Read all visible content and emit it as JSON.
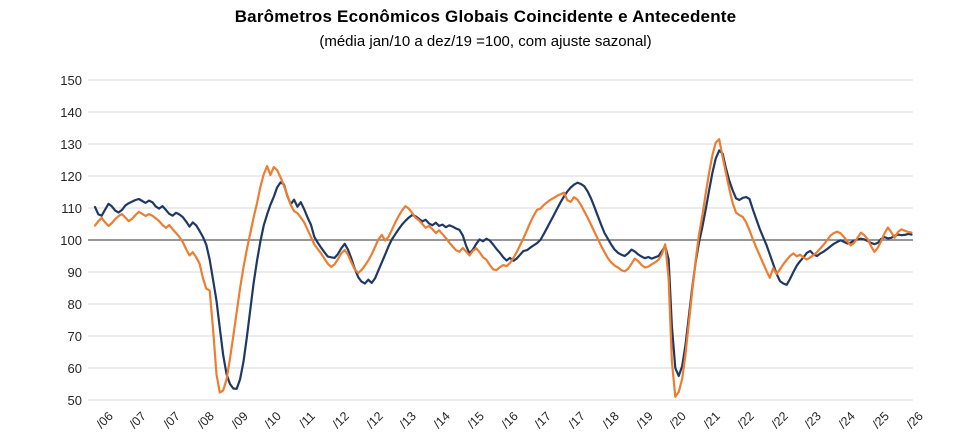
{
  "header": {
    "title": "Barômetros Econômicos Globais Coincidente e Antecedente",
    "subtitle": "(média jan/10 a dez/19 =100, com ajuste sazonal)"
  },
  "colors": {
    "coincidente_line": "#1f3864",
    "antecedente_line": "#ed7d31",
    "gridline": "#d9d9d9",
    "baseline_100": "#595959",
    "axis_text": "#262626"
  },
  "chart_data": {
    "type": "line",
    "title": "Barômetros Econômicos Globais Coincidente e Antecedente",
    "subtitle": "(média jan/10 a dez/19 =100, com ajuste sazonal)",
    "x_unit": "monthly, jan/06 through mar/26",
    "ylim": [
      50,
      150
    ],
    "yticks": [
      50,
      60,
      70,
      80,
      90,
      100,
      110,
      120,
      130,
      140,
      150
    ],
    "baseline": 100,
    "grid": "horizontal",
    "legend_position": "none",
    "x_tick_indices": [
      2,
      12,
      22,
      32,
      42,
      52,
      62,
      72,
      82,
      92,
      102,
      112,
      122,
      132,
      142,
      152,
      162,
      172,
      182,
      192,
      202,
      212,
      222,
      232,
      242
    ],
    "x_tick_labels": [
      "/06",
      "/07",
      "/07",
      "/08",
      "/09",
      "/10",
      "/11",
      "/12",
      "/12",
      "/13",
      "/14",
      "/15",
      "/16",
      "/17",
      "/17",
      "/18",
      "/19",
      "/20",
      "/21",
      "/22",
      "/22",
      "/23",
      "/24",
      "/25",
      "/26"
    ],
    "series": [
      {
        "name": "Coincidente",
        "color": "#1f3864",
        "values": [
          110.3,
          108.0,
          107.6,
          109.5,
          111.3,
          110.5,
          109.2,
          108.6,
          109.4,
          110.8,
          111.5,
          112.0,
          112.5,
          112.8,
          112.2,
          111.6,
          112.3,
          111.8,
          110.5,
          109.8,
          110.6,
          109.4,
          108.2,
          107.6,
          108.5,
          108.0,
          107.2,
          105.8,
          104.2,
          105.5,
          104.6,
          102.8,
          100.9,
          98.5,
          93.8,
          87.5,
          81.0,
          72.5,
          64.0,
          58.0,
          55.0,
          53.6,
          53.5,
          56.5,
          62.0,
          69.5,
          78.0,
          86.5,
          93.5,
          99.4,
          104.5,
          108.0,
          111.0,
          113.5,
          116.5,
          118.0,
          117.4,
          113.8,
          111.2,
          112.6,
          110.4,
          111.8,
          109.6,
          107.0,
          104.8,
          101.0,
          99.2,
          97.6,
          96.2,
          94.8,
          94.6,
          94.4,
          95.6,
          97.4,
          98.8,
          97.0,
          94.2,
          91.0,
          88.4,
          87.0,
          86.4,
          87.6,
          86.6,
          88.0,
          90.5,
          93.0,
          95.5,
          98.0,
          100.2,
          101.8,
          103.4,
          104.8,
          106.0,
          107.0,
          107.8,
          107.4,
          106.6,
          105.8,
          106.3,
          105.2,
          104.6,
          105.4,
          104.4,
          104.8,
          104.0,
          104.6,
          104.2,
          103.6,
          103.2,
          101.4,
          98.2,
          95.8,
          97.0,
          98.8,
          100.2,
          99.6,
          100.4,
          99.8,
          98.6,
          97.2,
          96.0,
          94.6,
          93.6,
          94.4,
          93.5,
          94.2,
          95.4,
          96.6,
          96.8,
          97.6,
          98.3,
          99.0,
          100.0,
          101.8,
          103.8,
          105.8,
          107.8,
          109.8,
          111.8,
          113.6,
          115.2,
          116.4,
          117.3,
          117.9,
          117.5,
          116.8,
          115.2,
          113.0,
          110.4,
          107.6,
          104.8,
          102.2,
          100.4,
          98.6,
          97.0,
          96.0,
          95.4,
          95.0,
          95.8,
          97.0,
          96.4,
          95.5,
          94.8,
          94.3,
          94.7,
          94.2,
          94.6,
          95.0,
          96.5,
          98.1,
          94.0,
          73.0,
          60.0,
          57.5,
          60.5,
          67.0,
          76.0,
          85.0,
          93.0,
          99.0,
          104.0,
          109.5,
          115.5,
          121.0,
          125.5,
          128.0,
          127.0,
          122.5,
          118.5,
          115.5,
          113.0,
          112.5,
          113.2,
          113.4,
          112.8,
          109.5,
          106.5,
          103.5,
          101.0,
          98.5,
          95.5,
          92.5,
          89.5,
          87.2,
          86.4,
          86.0,
          87.8,
          90.0,
          92.0,
          93.4,
          94.6,
          96.0,
          96.6,
          95.4,
          95.0,
          95.8,
          96.4,
          97.2,
          98.0,
          98.8,
          99.4,
          99.9,
          99.4,
          98.9,
          99.2,
          99.8,
          100.2,
          100.4,
          100.2,
          99.7,
          99.1,
          98.7,
          99.1,
          100.3,
          100.9,
          100.5,
          100.7,
          101.3,
          101.7,
          101.5,
          101.6,
          101.9,
          101.7
        ]
      },
      {
        "name": "Antecedente",
        "color": "#ed7d31",
        "values": [
          104.5,
          105.9,
          106.9,
          105.5,
          104.4,
          105.3,
          106.5,
          107.5,
          108.1,
          107.0,
          105.9,
          106.6,
          107.8,
          108.8,
          108.2,
          107.5,
          108.1,
          107.6,
          106.8,
          105.9,
          104.7,
          103.8,
          104.7,
          103.4,
          102.2,
          101.0,
          99.4,
          97.2,
          95.2,
          96.2,
          94.6,
          92.6,
          88.0,
          84.8,
          84.2,
          72.0,
          58.0,
          52.3,
          53.0,
          56.5,
          63.0,
          70.0,
          77.5,
          85.0,
          91.5,
          97.0,
          102.0,
          107.0,
          111.5,
          116.5,
          120.5,
          123.1,
          120.3,
          122.8,
          121.8,
          119.5,
          117.0,
          114.0,
          111.0,
          109.0,
          108.4,
          107.0,
          105.5,
          103.2,
          101.0,
          98.6,
          97.2,
          95.8,
          94.2,
          92.6,
          91.6,
          92.4,
          94.0,
          95.8,
          96.9,
          95.4,
          93.0,
          90.8,
          89.7,
          90.6,
          92.0,
          93.6,
          95.5,
          97.8,
          100.2,
          101.6,
          99.8,
          101.0,
          103.2,
          105.5,
          107.5,
          109.2,
          110.6,
          109.8,
          108.4,
          107.0,
          106.2,
          105.0,
          103.8,
          104.4,
          103.4,
          102.2,
          103.0,
          101.8,
          100.6,
          99.2,
          98.0,
          96.8,
          96.3,
          97.5,
          96.4,
          95.2,
          96.6,
          97.4,
          96.2,
          94.6,
          93.8,
          92.2,
          90.8,
          90.6,
          91.5,
          92.2,
          91.8,
          92.8,
          94.4,
          96.2,
          98.4,
          100.6,
          103.0,
          105.4,
          107.6,
          109.4,
          109.8,
          110.9,
          111.8,
          112.6,
          113.2,
          113.8,
          114.3,
          114.8,
          112.4,
          111.9,
          113.4,
          112.6,
          111.0,
          109.0,
          107.0,
          104.8,
          102.6,
          100.4,
          98.2,
          96.2,
          94.4,
          93.0,
          92.0,
          91.4,
          90.6,
          90.2,
          91.0,
          92.6,
          94.2,
          93.4,
          92.2,
          91.4,
          91.7,
          92.4,
          93.0,
          93.8,
          95.5,
          98.7,
          88.0,
          62.0,
          51.0,
          52.5,
          56.5,
          64.0,
          74.0,
          84.0,
          93.5,
          101.5,
          107.5,
          114.5,
          121.0,
          126.5,
          130.5,
          131.5,
          126.0,
          121.0,
          116.0,
          111.5,
          108.5,
          107.8,
          107.2,
          105.5,
          103.0,
          100.2,
          97.6,
          95.2,
          92.8,
          90.4,
          88.2,
          91.2,
          89.4,
          90.8,
          92.4,
          93.8,
          95.0,
          95.8,
          94.9,
          95.4,
          94.5,
          93.9,
          94.6,
          95.3,
          96.2,
          97.4,
          98.6,
          100.0,
          101.4,
          102.2,
          102.6,
          102.1,
          100.9,
          99.5,
          98.3,
          99.1,
          100.7,
          102.3,
          101.5,
          100.3,
          98.1,
          96.3,
          97.6,
          99.6,
          102.1,
          103.9,
          102.4,
          100.7,
          102.5,
          103.3,
          102.9,
          102.5,
          102.3
        ]
      }
    ]
  }
}
